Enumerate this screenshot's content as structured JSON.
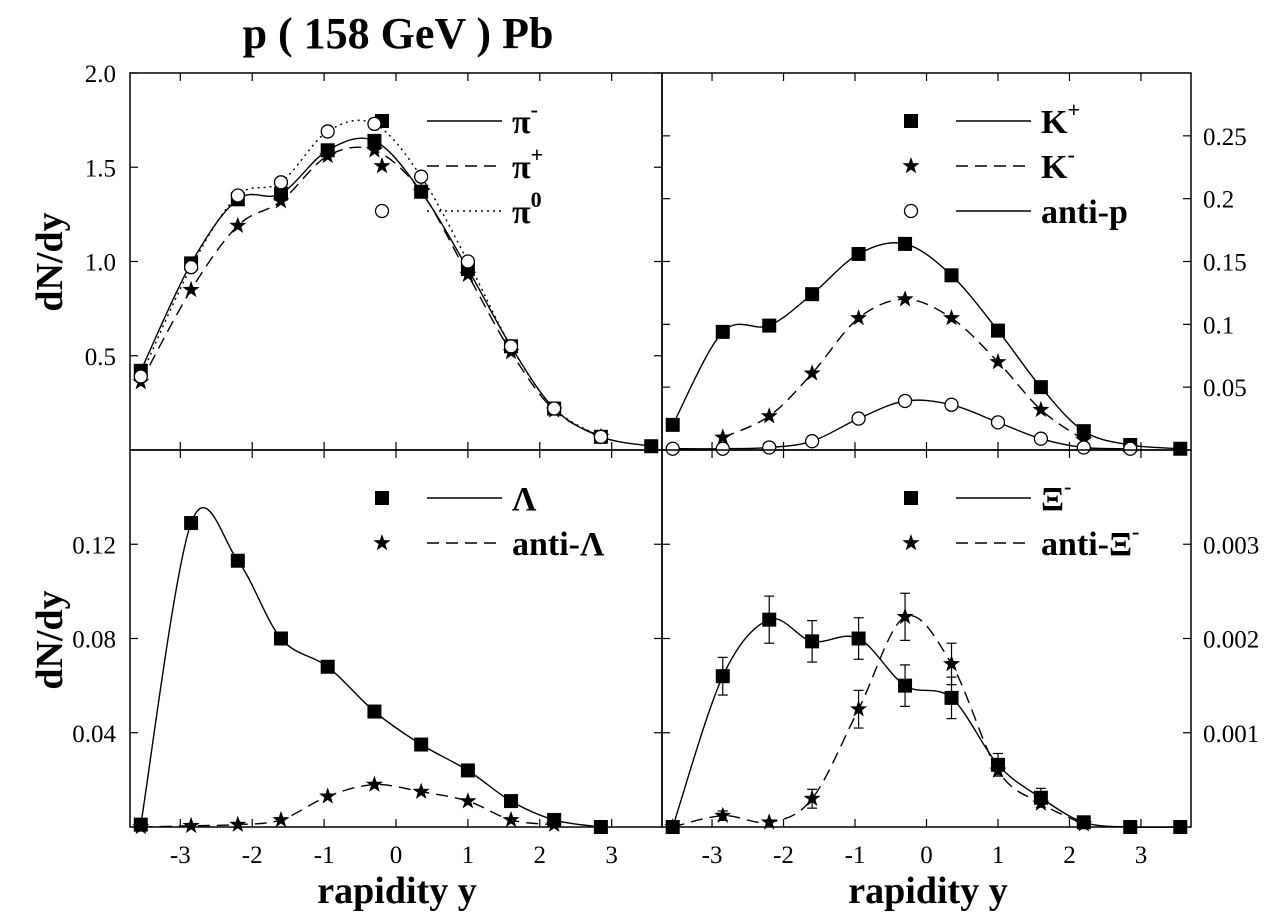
{
  "title": "p ( 158 GeV ) Pb",
  "x_axis_label": "rapidity y",
  "y_axis_label": "dN/dy",
  "chart_data": [
    {
      "type": "line",
      "panel": "top-left",
      "xlim": [
        -3.7,
        3.7
      ],
      "ylim": [
        0,
        2.0
      ],
      "y_ticks": [
        0.5,
        1.0,
        1.5,
        2.0
      ],
      "y_tick_labels": [
        "0.5",
        "1.0",
        "1.5",
        "2.0"
      ],
      "y_tick_side": "left",
      "legend_position": "top-right",
      "series": [
        {
          "name": "π-",
          "label_base": "π",
          "label_sup": "-",
          "marker": "square",
          "style": "solid",
          "x": [
            -3.55,
            -2.85,
            -2.2,
            -1.6,
            -0.95,
            -0.3,
            0.35,
            1.0,
            1.6,
            2.2,
            2.85,
            3.55
          ],
          "y": [
            0.42,
            0.99,
            1.33,
            1.36,
            1.59,
            1.64,
            1.37,
            0.96,
            0.55,
            0.22,
            0.07,
            0.02
          ]
        },
        {
          "name": "π+",
          "label_base": "π",
          "label_sup": "+",
          "marker": "star",
          "style": "dashed",
          "x": [
            -3.55,
            -2.85,
            -2.2,
            -1.6,
            -0.95,
            -0.3,
            0.35,
            1.0,
            1.6,
            2.2,
            2.85
          ],
          "y": [
            0.36,
            0.85,
            1.19,
            1.32,
            1.56,
            1.59,
            1.37,
            0.93,
            0.52,
            0.21,
            0.07
          ]
        },
        {
          "name": "π0",
          "label_base": "π",
          "label_sup": "0",
          "marker": "circle",
          "style": "dotted",
          "x": [
            -3.55,
            -2.85,
            -2.2,
            -1.6,
            -0.95,
            -0.3,
            0.35,
            1.0,
            1.6,
            2.2,
            2.85
          ],
          "y": [
            0.39,
            0.97,
            1.35,
            1.42,
            1.69,
            1.73,
            1.45,
            1.0,
            0.55,
            0.22,
            0.07
          ]
        }
      ]
    },
    {
      "type": "line",
      "panel": "top-right",
      "xlim": [
        -3.7,
        3.7
      ],
      "ylim": [
        0,
        0.3
      ],
      "y_ticks": [
        0.05,
        0.1,
        0.15,
        0.2,
        0.25
      ],
      "y_tick_labels": [
        "0.05",
        "0.1",
        "0.15",
        "0.2",
        "0.25"
      ],
      "y_tick_side": "right",
      "legend_position": "top-right",
      "series": [
        {
          "name": "K+",
          "label_base": "K",
          "label_sup": "+",
          "marker": "square",
          "style": "solid",
          "x": [
            -3.55,
            -2.85,
            -2.2,
            -1.6,
            -0.95,
            -0.3,
            0.35,
            1.0,
            1.6,
            2.2,
            2.85,
            3.55
          ],
          "y": [
            0.02,
            0.094,
            0.099,
            0.124,
            0.156,
            0.164,
            0.139,
            0.095,
            0.05,
            0.015,
            0.004,
            0.001
          ]
        },
        {
          "name": "K-",
          "label_base": "K",
          "label_sup": "-",
          "marker": "star",
          "style": "dashed",
          "x": [
            -2.85,
            -2.2,
            -1.6,
            -0.95,
            -0.3,
            0.35,
            1.0,
            1.6,
            2.2
          ],
          "y": [
            0.01,
            0.027,
            0.061,
            0.105,
            0.12,
            0.105,
            0.07,
            0.032,
            0.008
          ]
        },
        {
          "name": "anti-p",
          "label_base": "anti-p",
          "label_sup": "",
          "marker": "circle",
          "style": "solid",
          "x": [
            -3.55,
            -2.85,
            -2.2,
            -1.6,
            -0.95,
            -0.3,
            0.35,
            1.0,
            1.6,
            2.2,
            2.85
          ],
          "y": [
            0.001,
            0.001,
            0.002,
            0.007,
            0.025,
            0.039,
            0.036,
            0.022,
            0.009,
            0.002,
            0.001
          ]
        }
      ]
    },
    {
      "type": "line",
      "panel": "bottom-left",
      "xlim": [
        -3.7,
        3.7
      ],
      "ylim": [
        0,
        0.16
      ],
      "y_ticks": [
        0.04,
        0.08,
        0.12
      ],
      "y_tick_labels": [
        "0.04",
        "0.08",
        "0.12"
      ],
      "y_tick_side": "left",
      "x_ticks": [
        -3,
        -2,
        -1,
        0,
        1,
        2,
        3
      ],
      "x_tick_labels": [
        "-3",
        "-2",
        "-1",
        "0",
        "1",
        "2",
        "3"
      ],
      "legend_position": "top-right",
      "series": [
        {
          "name": "Λ",
          "label_base": "Λ",
          "label_sup": "",
          "marker": "square",
          "style": "solid",
          "x": [
            -3.55,
            -2.85,
            -2.2,
            -1.6,
            -0.95,
            -0.3,
            0.35,
            1.0,
            1.6,
            2.2,
            2.85
          ],
          "y": [
            0.001,
            0.129,
            0.113,
            0.08,
            0.068,
            0.049,
            0.035,
            0.024,
            0.011,
            0.003,
            0.0
          ]
        },
        {
          "name": "anti-Λ",
          "label_base": "anti-Λ",
          "label_sup": "",
          "marker": "star",
          "style": "dashed",
          "x": [
            -3.55,
            -2.85,
            -2.2,
            -1.6,
            -0.95,
            -0.3,
            0.35,
            1.0,
            1.6,
            2.2
          ],
          "y": [
            0.0,
            0.0005,
            0.001,
            0.003,
            0.013,
            0.018,
            0.015,
            0.011,
            0.003,
            0.001
          ]
        }
      ]
    },
    {
      "type": "line",
      "panel": "bottom-right",
      "xlim": [
        -3.7,
        3.7
      ],
      "ylim": [
        0,
        0.004
      ],
      "y_ticks": [
        0.001,
        0.002,
        0.003
      ],
      "y_tick_labels": [
        "0.001",
        "0.002",
        "0.003"
      ],
      "y_tick_side": "right",
      "x_ticks": [
        -3,
        -2,
        -1,
        0,
        1,
        2,
        3
      ],
      "x_tick_labels": [
        "-3",
        "-2",
        "-1",
        "0",
        "1",
        "2",
        "3"
      ],
      "legend_position": "top-right",
      "series": [
        {
          "name": "Ξ-",
          "label_base": "Ξ",
          "label_sup": "-",
          "marker": "square",
          "style": "solid",
          "x": [
            -3.55,
            -2.85,
            -2.2,
            -1.6,
            -0.95,
            -0.3,
            0.35,
            1.0,
            1.6,
            2.2,
            2.85,
            3.55
          ],
          "y": [
            0.0,
            0.0016,
            0.0022,
            0.00197,
            0.002,
            0.0015,
            0.00137,
            0.00066,
            0.00031,
            5e-05,
            0.0,
            0.0
          ],
          "err": [
            0,
            0.0002,
            0.00025,
            0.00022,
            0.00022,
            0.00022,
            0.00022,
            0.00012,
            0.0001,
            0,
            0,
            0
          ]
        },
        {
          "name": "anti-Ξ-",
          "label_base": "anti-Ξ",
          "label_sup": "-",
          "marker": "star",
          "style": "dashed",
          "x": [
            -3.55,
            -2.85,
            -2.2,
            -1.6,
            -0.95,
            -0.3,
            0.35,
            1.0,
            1.6,
            2.2
          ],
          "y": [
            0.0,
            0.00012,
            5e-05,
            0.0003,
            0.00125,
            0.00223,
            0.00173,
            0.0006,
            0.00025,
            3e-05
          ],
          "err": [
            0,
            5e-05,
            0,
            0.0001,
            0.0002,
            0.00025,
            0.00022,
            0,
            0,
            0
          ]
        }
      ]
    }
  ]
}
